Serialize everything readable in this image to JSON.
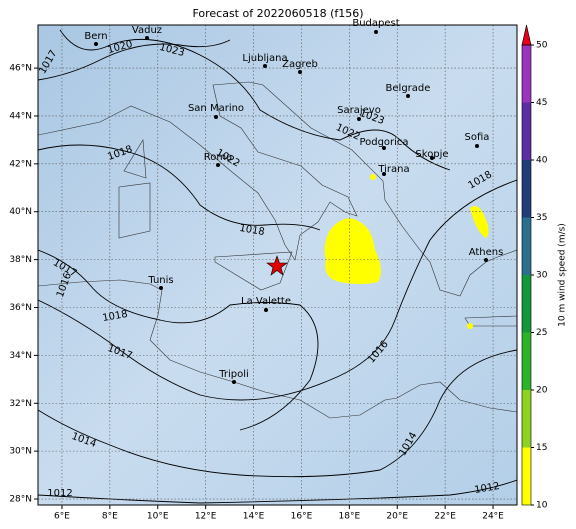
{
  "title": "Forecast of 2022060518 (f156)",
  "map": {
    "xlim": [
      5,
      25
    ],
    "ylim": [
      27.75,
      47.8
    ],
    "xticks": [
      {
        "value": 6,
        "label": "6°E"
      },
      {
        "value": 8,
        "label": "8°E"
      },
      {
        "value": 10,
        "label": "10°E"
      },
      {
        "value": 12,
        "label": "12°E"
      },
      {
        "value": 14,
        "label": "14°E"
      },
      {
        "value": 16,
        "label": "16°E"
      },
      {
        "value": 18,
        "label": "18°E"
      },
      {
        "value": 20,
        "label": "20°E"
      },
      {
        "value": 22,
        "label": "22°E"
      },
      {
        "value": 24,
        "label": "24°E"
      }
    ],
    "yticks": [
      {
        "value": 28,
        "label": "28°N"
      },
      {
        "value": 30,
        "label": "30°N"
      },
      {
        "value": 32,
        "label": "32°N"
      },
      {
        "value": 34,
        "label": "34°N"
      },
      {
        "value": 36,
        "label": "36°N"
      },
      {
        "value": 38,
        "label": "38°N"
      },
      {
        "value": 40,
        "label": "40°N"
      },
      {
        "value": 42,
        "label": "42°N"
      },
      {
        "value": 44,
        "label": "44°N"
      },
      {
        "value": 46,
        "label": "46°N"
      }
    ],
    "grid": true,
    "cities": [
      "Bern",
      "Vaduz",
      "Ljubljana",
      "Zagreb",
      "Budapest",
      "San Marino",
      "Belgrade",
      "Sarajevo",
      "Podgorica",
      "Sofia",
      "Skopje",
      "Roma",
      "Tirana",
      "Tunis",
      "Athens",
      "La Valette",
      "Tripoli"
    ],
    "isobar_labels": [
      "1020",
      "1023",
      "1017",
      "1018",
      "1022",
      "1023",
      "1022",
      "1018",
      "1018",
      "1017",
      "1016",
      "1018",
      "1017",
      "1016",
      "1014",
      "1014",
      "1012",
      "1012"
    ]
  },
  "colorbar": {
    "label": "10 m wind speed (m/s)",
    "lim": [
      10,
      50
    ],
    "ticks": [
      10,
      15,
      20,
      25,
      30,
      35,
      40,
      45,
      50
    ],
    "colors": [
      "#ffff00",
      "#8cd21e",
      "#2db32a",
      "#14973c",
      "#2b6f8e",
      "#213c78",
      "#5c2ea3",
      "#9b34bb"
    ],
    "extend_color": "#e3001b"
  }
}
